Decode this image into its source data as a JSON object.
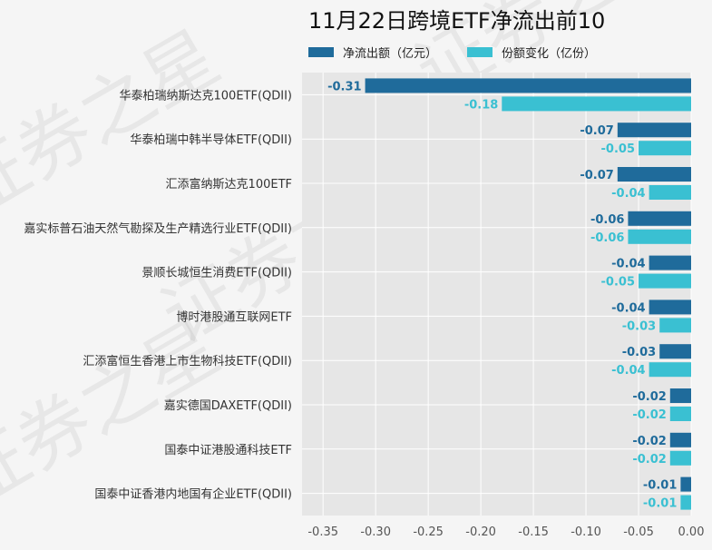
{
  "watermark": "证券之星",
  "chart_data": {
    "type": "bar",
    "orientation": "horizontal",
    "title": "11月22日跨境ETF净流出前10",
    "xlabel": "",
    "ylabel": "",
    "xlim": [
      -0.37,
      0.0
    ],
    "xticks": [
      -0.35,
      -0.3,
      -0.25,
      -0.2,
      -0.15,
      -0.1,
      -0.05,
      0.0
    ],
    "xtick_labels": [
      "-0.35",
      "-0.30",
      "-0.25",
      "-0.20",
      "-0.15",
      "-0.10",
      "-0.05",
      "0.00"
    ],
    "grid": true,
    "legend_position": "top",
    "categories": [
      "华泰柏瑞纳斯达克100ETF(QDII)",
      "华泰柏瑞中韩半导体ETF(QDII)",
      "汇添富纳斯达克100ETF",
      "嘉实标普石油天然气勘探及生产精选行业ETF(QDII)",
      "景顺长城恒生消费ETF(QDII)",
      "博时港股通互联网ETF",
      "汇添富恒生香港上市生物科技ETF(QDII)",
      "嘉实德国DAXETF(QDII)",
      "国泰中证港股通科技ETF",
      "国泰中证香港内地国有企业ETF(QDII)"
    ],
    "series": [
      {
        "name": "净流出额（亿元）",
        "color": "#1f6b9b",
        "values": [
          -0.31,
          -0.07,
          -0.07,
          -0.06,
          -0.04,
          -0.04,
          -0.03,
          -0.02,
          -0.02,
          -0.01
        ],
        "labels": [
          "-0.31",
          "-0.07",
          "-0.07",
          "-0.06",
          "-0.04",
          "-0.04",
          "-0.03",
          "-0.02",
          "-0.02",
          "-0.01"
        ]
      },
      {
        "name": "份额变化（亿份）",
        "color": "#3ac0d2",
        "values": [
          -0.18,
          -0.05,
          -0.04,
          -0.06,
          -0.05,
          -0.03,
          -0.04,
          -0.02,
          -0.02,
          -0.01
        ],
        "labels": [
          "-0.18",
          "-0.05",
          "-0.04",
          "-0.06",
          "-0.05",
          "-0.03",
          "-0.04",
          "-0.02",
          "-0.02",
          "-0.01"
        ]
      }
    ]
  }
}
